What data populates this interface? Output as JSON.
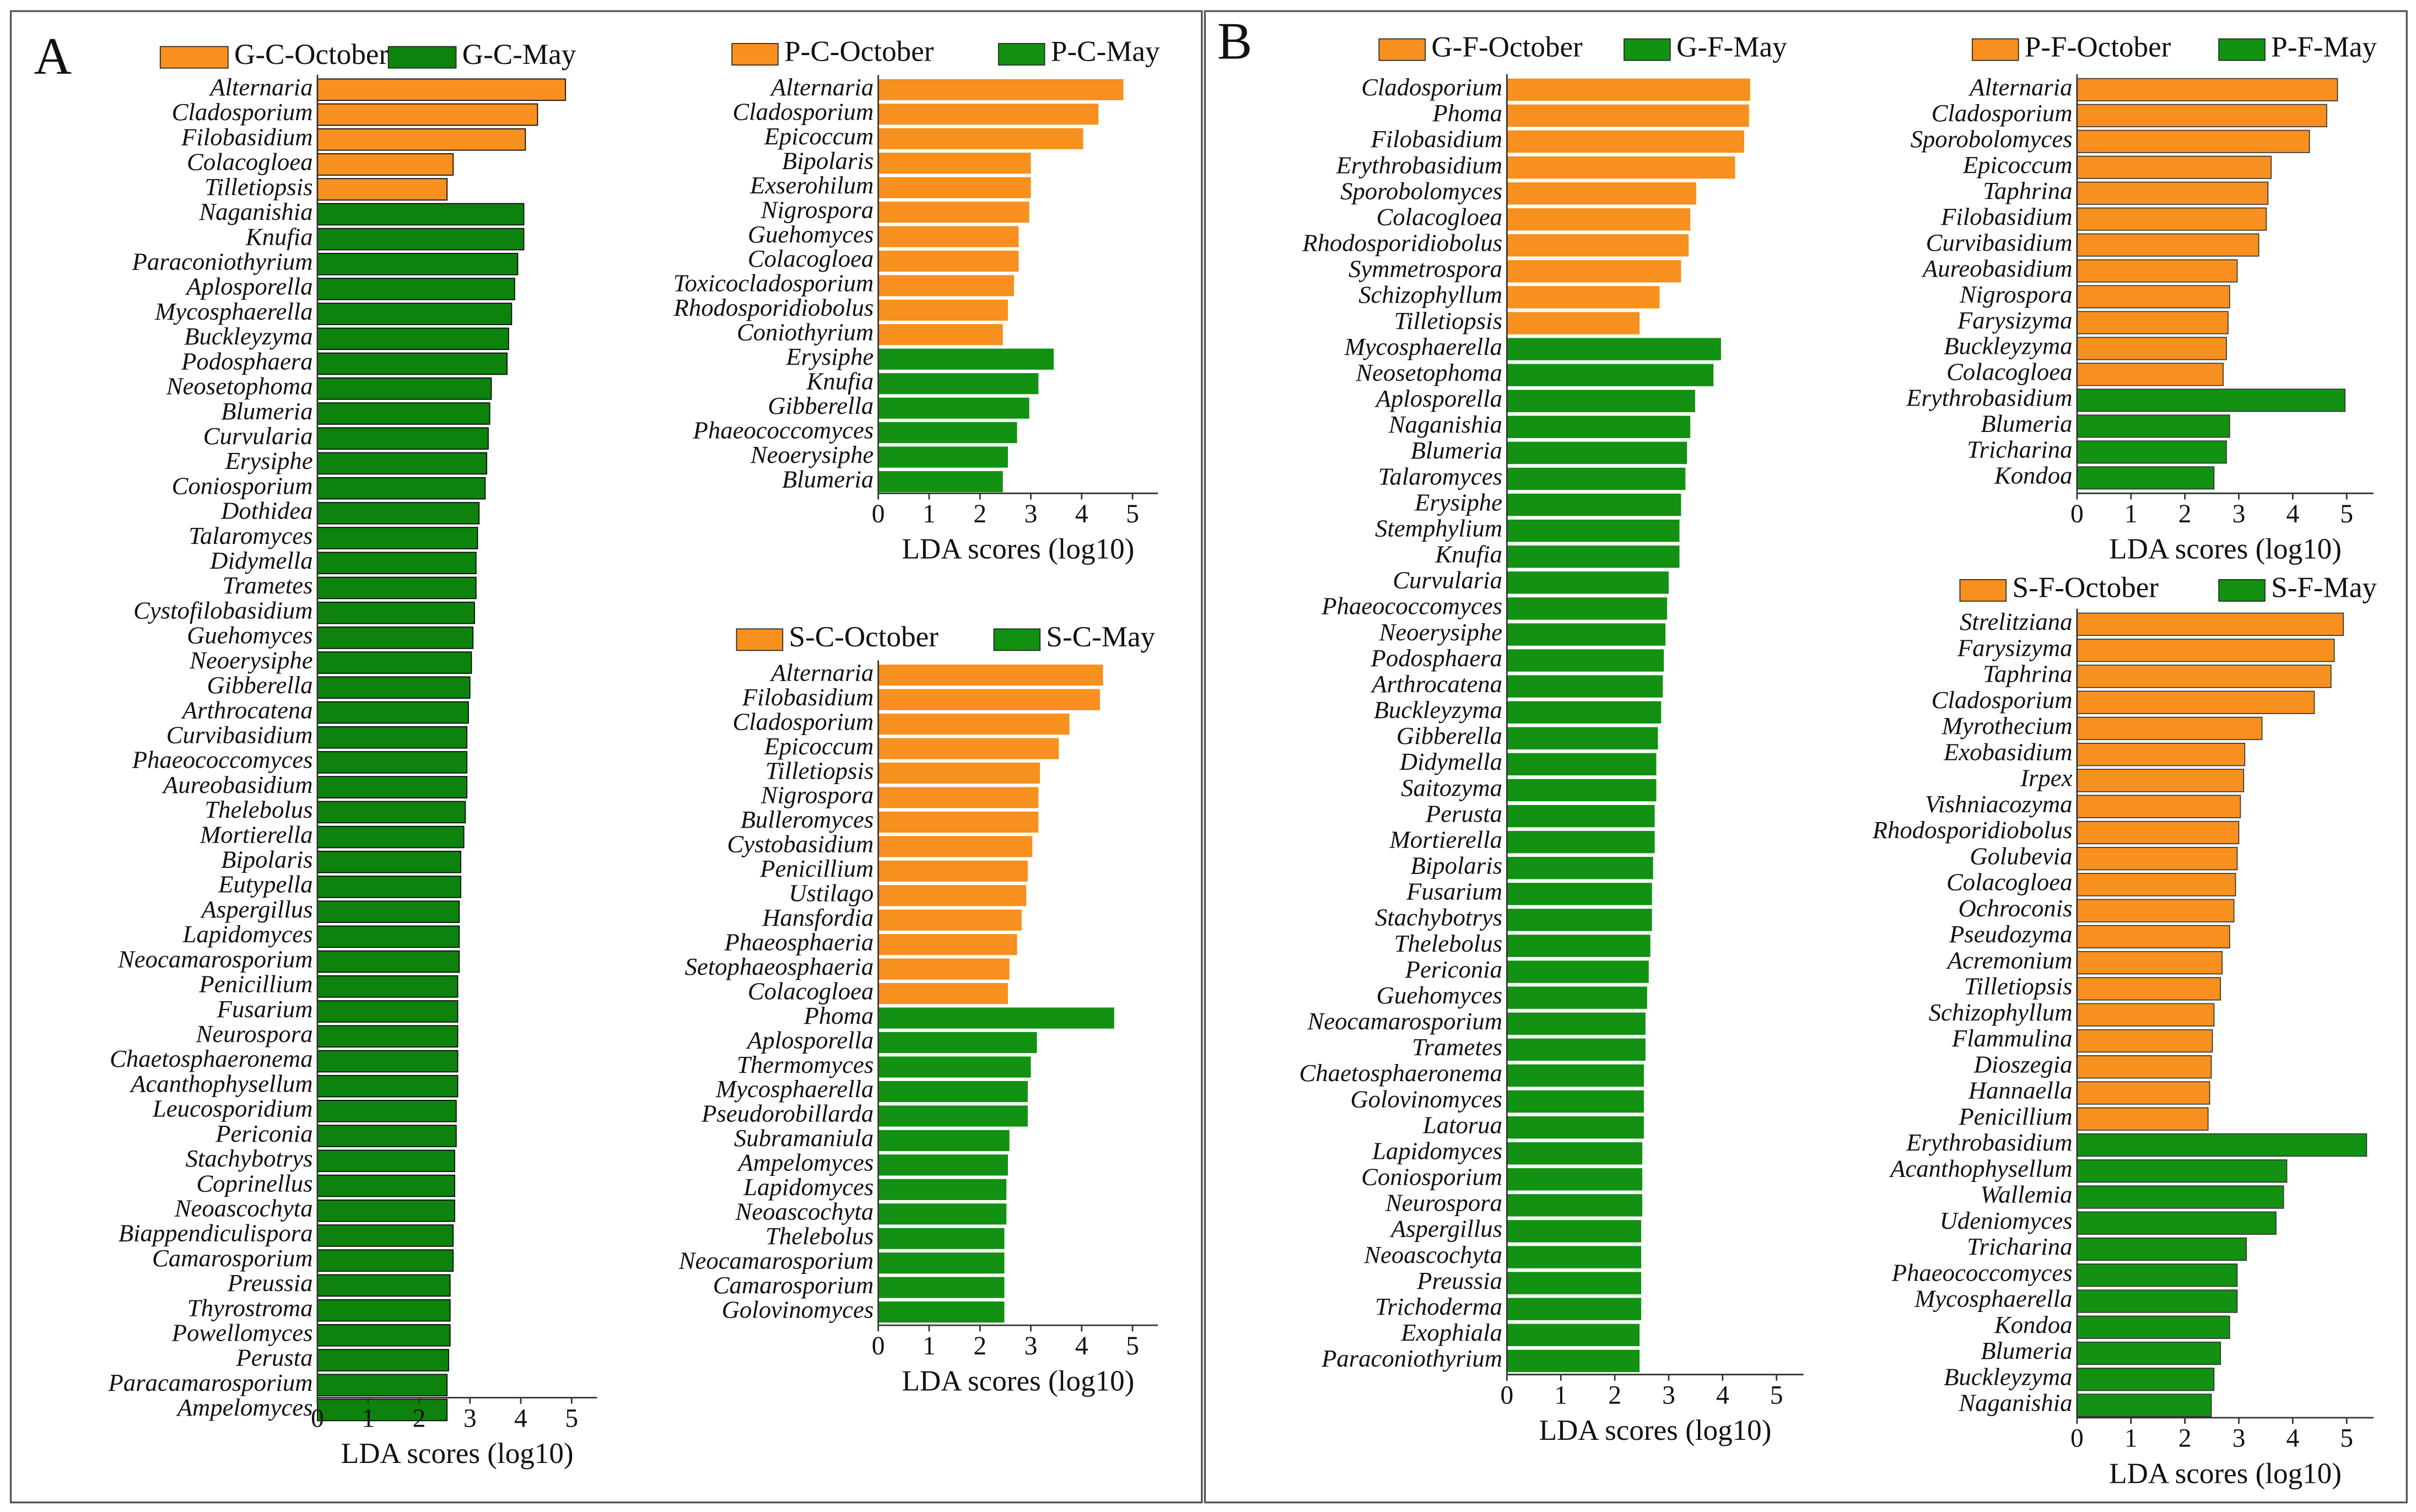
{
  "panel_labels": [
    "A",
    "B"
  ],
  "chart_data": [
    {
      "type": "bar",
      "orientation": "horizontal",
      "xlabel": "LDA scores (log10)",
      "xlim": [
        0,
        5.5
      ],
      "xticks": [
        0,
        1,
        2,
        3,
        4,
        5
      ],
      "series": [
        {
          "name": "G-C-October",
          "color": "#f7901e",
          "categories": [
            "Alternaria",
            "Cladosporium",
            "Filobasidium",
            "Colacogloea",
            "Tilletiopsis"
          ],
          "values": [
            4.88,
            4.33,
            4.09,
            2.67,
            2.55
          ]
        },
        {
          "name": "G-C-May",
          "color": "#0d820d",
          "categories": [
            "Naganishia",
            "Knufia",
            "Paraconiothyrium",
            "Aplosporella",
            "Mycosphaerella",
            "Buckleyzyma",
            "Podosphaera",
            "Neosetophoma",
            "Blumeria",
            "Curvularia",
            "Erysiphe",
            "Coniosporium",
            "Dothidea",
            "Talaromyces",
            "Didymella",
            "Trametes",
            "Cystofilobasidium",
            "Guehomyces",
            "Neoerysiphe",
            "Gibberella",
            "Arthrocatena",
            "Curvibasidium",
            "Phaeococcomyces",
            "Aureobasidium",
            "Thelebolus",
            "Mortierella",
            "Bipolaris",
            "Eutypella",
            "Aspergillus",
            "Lapidomyces",
            "Neocamarosporium",
            "Penicillium",
            "Fusarium",
            "Neurospora",
            "Chaetosphaeronema",
            "Acanthophysellum",
            "Leucosporidium",
            "Periconia",
            "Stachybotrys",
            "Coprinellus",
            "Neoascochyta",
            "Biappendiculispora",
            "Camarosporium",
            "Preussia",
            "Thyrostroma",
            "Powellomyces",
            "Perusta",
            "Paracamarosporium",
            "Ampelomyces"
          ],
          "values": [
            4.06,
            4.06,
            3.94,
            3.88,
            3.82,
            3.76,
            3.73,
            3.42,
            3.39,
            3.36,
            3.33,
            3.3,
            3.18,
            3.15,
            3.12,
            3.12,
            3.09,
            3.06,
            3.03,
            3.0,
            2.97,
            2.94,
            2.94,
            2.94,
            2.91,
            2.88,
            2.82,
            2.82,
            2.79,
            2.79,
            2.79,
            2.76,
            2.76,
            2.76,
            2.76,
            2.76,
            2.73,
            2.73,
            2.7,
            2.7,
            2.7,
            2.67,
            2.67,
            2.61,
            2.61,
            2.61,
            2.58,
            2.55,
            2.55
          ]
        }
      ]
    },
    {
      "type": "bar",
      "orientation": "horizontal",
      "xlabel": "LDA scores (log10)",
      "xlim": [
        0,
        5.5
      ],
      "xticks": [
        0,
        1,
        2,
        3,
        4,
        5
      ],
      "series": [
        {
          "name": "P-C-October",
          "color": "#f7901e",
          "categories": [
            "Alternaria",
            "Cladosporium",
            "Epicoccum",
            "Bipolaris",
            "Exserohilum",
            "Nigrospora",
            "Guehomyces",
            "Colacogloea",
            "Toxicocladosporium",
            "Rhodosporidiobolus",
            "Coniothyrium"
          ],
          "values": [
            4.82,
            4.33,
            4.03,
            3.0,
            3.0,
            2.97,
            2.76,
            2.76,
            2.67,
            2.55,
            2.45
          ]
        },
        {
          "name": "P-C-May",
          "color": "#129112",
          "categories": [
            "Erysiphe",
            "Knufia",
            "Gibberella",
            "Phaeococcomyces",
            "Neoerysiphe",
            "Blumeria"
          ],
          "values": [
            3.45,
            3.15,
            2.97,
            2.73,
            2.55,
            2.45
          ]
        }
      ]
    },
    {
      "type": "bar",
      "orientation": "horizontal",
      "xlabel": "LDA scores (log10)",
      "xlim": [
        0,
        5.5
      ],
      "xticks": [
        0,
        1,
        2,
        3,
        4,
        5
      ],
      "series": [
        {
          "name": "S-C-October",
          "color": "#f7901e",
          "categories": [
            "Alternaria",
            "Filobasidium",
            "Cladosporium",
            "Epicoccum",
            "Tilletiopsis",
            "Nigrospora",
            "Bulleromyces",
            "Cystobasidium",
            "Penicillium",
            "Ustilago",
            "Hansfordia",
            "Phaeosphaeria",
            "Setophaeosphaeria",
            "Colacogloea"
          ],
          "values": [
            4.42,
            4.36,
            3.76,
            3.55,
            3.18,
            3.15,
            3.15,
            3.03,
            2.94,
            2.91,
            2.82,
            2.73,
            2.58,
            2.55
          ]
        },
        {
          "name": "S-C-May",
          "color": "#129112",
          "categories": [
            "Phoma",
            "Aplosporella",
            "Thermomyces",
            "Mycosphaerella",
            "Pseudorobillarda",
            "Subramaniula",
            "Ampelomyces",
            "Lapidomyces",
            "Neoascochyta",
            "Thelebolus",
            "Neocamarosporium",
            "Camarosporium",
            "Golovinomyces"
          ],
          "values": [
            4.64,
            3.12,
            3.0,
            2.94,
            2.94,
            2.58,
            2.55,
            2.52,
            2.52,
            2.48,
            2.48,
            2.48,
            2.48
          ]
        }
      ]
    },
    {
      "type": "bar",
      "orientation": "horizontal",
      "xlabel": "LDA scores (log10)",
      "xlim": [
        0,
        5.5
      ],
      "xticks": [
        0,
        1,
        2,
        3,
        4,
        5
      ],
      "series": [
        {
          "name": "G-F-October",
          "color": "#f7901e",
          "categories": [
            "Cladosporium",
            "Phoma",
            "Filobasidium",
            "Erythrobasidium",
            "Sporobolomyces",
            "Colacogloea",
            "Rhodosporidiobolus",
            "Symmetrospora",
            "Schizophyllum",
            "Tilletiopsis"
          ],
          "values": [
            4.51,
            4.49,
            4.4,
            4.23,
            3.51,
            3.4,
            3.37,
            3.23,
            2.83,
            2.46
          ]
        },
        {
          "name": "G-F-May",
          "color": "#129112",
          "categories": [
            "Mycosphaerella",
            "Neosetophoma",
            "Aplosporella",
            "Naganishia",
            "Blumeria",
            "Talaromyces",
            "Erysiphe",
            "Stemphylium",
            "Knufia",
            "Curvularia",
            "Phaeococcomyces",
            "Neoerysiphe",
            "Podosphaera",
            "Arthrocatena",
            "Buckleyzyma",
            "Gibberella",
            "Didymella",
            "Saitozyma",
            "Perusta",
            "Mortierella",
            "Bipolaris",
            "Fusarium",
            "Stachybotrys",
            "Thelebolus",
            "Periconia",
            "Guehomyces",
            "Neocamarosporium",
            "Trametes",
            "Chaetosphaeronema",
            "Golovinomyces",
            "Latorua",
            "Lapidomyces",
            "Coniosporium",
            "Neurospora",
            "Aspergillus",
            "Neoascochyta",
            "Preussia",
            "Trichoderma",
            "Exophiala",
            "Paraconiothyrium"
          ],
          "values": [
            3.97,
            3.83,
            3.49,
            3.4,
            3.34,
            3.31,
            3.23,
            3.2,
            3.2,
            3.0,
            2.97,
            2.94,
            2.91,
            2.89,
            2.86,
            2.8,
            2.77,
            2.77,
            2.74,
            2.74,
            2.71,
            2.69,
            2.69,
            2.66,
            2.63,
            2.6,
            2.57,
            2.57,
            2.54,
            2.54,
            2.54,
            2.51,
            2.51,
            2.51,
            2.49,
            2.49,
            2.49,
            2.49,
            2.46,
            2.46
          ]
        }
      ]
    },
    {
      "type": "bar",
      "orientation": "horizontal",
      "xlabel": "LDA scores (log10)",
      "xlim": [
        0,
        5.5
      ],
      "xticks": [
        0,
        1,
        2,
        3,
        4,
        5
      ],
      "series": [
        {
          "name": "P-F-October",
          "color": "#f7901e",
          "categories": [
            "Alternaria",
            "Cladosporium",
            "Sporobolomyces",
            "Epicoccum",
            "Taphrina",
            "Filobasidium",
            "Curvibasidium",
            "Aureobasidium",
            "Nigrospora",
            "Farysizyma",
            "Buckleyzyma",
            "Colacogloea"
          ],
          "values": [
            4.83,
            4.63,
            4.31,
            3.6,
            3.54,
            3.51,
            3.37,
            2.97,
            2.83,
            2.8,
            2.77,
            2.71
          ]
        },
        {
          "name": "P-F-May",
          "color": "#129112",
          "categories": [
            "Erythrobasidium",
            "Blumeria",
            "Tricharina",
            "Kondoa"
          ],
          "values": [
            4.97,
            2.83,
            2.77,
            2.54
          ]
        }
      ]
    },
    {
      "type": "bar",
      "orientation": "horizontal",
      "xlabel": "LDA scores (log10)",
      "xlim": [
        0,
        5.5
      ],
      "xticks": [
        0,
        1,
        2,
        3,
        4,
        5
      ],
      "series": [
        {
          "name": "S-F-October",
          "color": "#f7901e",
          "categories": [
            "Strelitziana",
            "Farysizyma",
            "Taphrina",
            "Cladosporium",
            "Myrothecium",
            "Exobasidium",
            "Irpex",
            "Vishniacozyma",
            "Rhodosporidiobolus",
            "Golubevia",
            "Colacogloea",
            "Ochroconis",
            "Pseudozyma",
            "Acremonium",
            "Tilletiopsis",
            "Schizophyllum",
            "Flammulina",
            "Dioszegia",
            "Hannaella",
            "Penicillium"
          ],
          "values": [
            4.94,
            4.77,
            4.71,
            4.4,
            3.43,
            3.11,
            3.09,
            3.03,
            3.0,
            2.97,
            2.94,
            2.91,
            2.83,
            2.69,
            2.66,
            2.54,
            2.51,
            2.49,
            2.46,
            2.43
          ]
        },
        {
          "name": "S-F-May",
          "color": "#129112",
          "categories": [
            "Erythrobasidium",
            "Acanthophysellum",
            "Wallemia",
            "Udeniomyces",
            "Tricharina",
            "Phaeococcomyces",
            "Mycosphaerella",
            "Kondoa",
            "Blumeria",
            "Buckleyzyma",
            "Naganishia"
          ],
          "values": [
            5.37,
            3.89,
            3.83,
            3.69,
            3.14,
            2.97,
            2.97,
            2.83,
            2.66,
            2.54,
            2.49
          ]
        }
      ]
    }
  ]
}
